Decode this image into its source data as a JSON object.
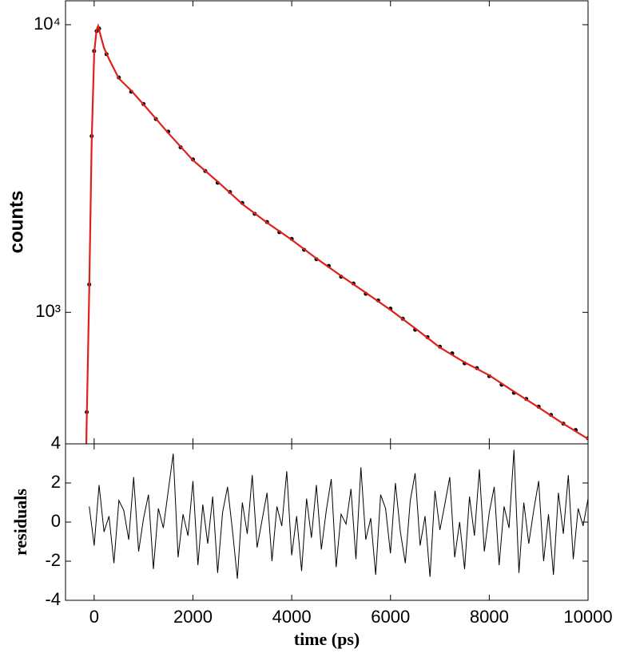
{
  "chart_data": [
    {
      "type": "scatter",
      "ylabel": "counts",
      "yscale": "log",
      "xlim": [
        -580,
        10000
      ],
      "ylim": [
        349,
        12110
      ],
      "yticks": [
        {
          "value": 1000,
          "label": "10³"
        },
        {
          "value": 10000,
          "label": "10⁴"
        }
      ],
      "series": [
        {
          "color": "#000000",
          "x": [
            -150,
            -100,
            -50,
            0,
            50,
            100,
            250,
            500,
            750,
            1000,
            1250,
            1500,
            1750,
            2000,
            2250,
            2500,
            2750,
            3000,
            3250,
            3500,
            3750,
            4000,
            4250,
            4500,
            4750,
            5000,
            5250,
            5500,
            5750,
            6000,
            6250,
            6500,
            6750,
            7000,
            7250,
            7500,
            7750,
            8000,
            8250,
            8500,
            8750,
            9000,
            9250,
            9500,
            9750,
            10000
          ],
          "values": [
            450,
            1250,
            4100,
            8100,
            9500,
            9700,
            7900,
            6550,
            5850,
            5300,
            4700,
            4250,
            3750,
            3400,
            3100,
            2820,
            2620,
            2400,
            2200,
            2060,
            1900,
            1800,
            1650,
            1530,
            1450,
            1330,
            1260,
            1160,
            1100,
            1030,
            950,
            870,
            820,
            760,
            720,
            665,
            640,
            600,
            560,
            525,
            500,
            470,
            440,
            410,
            390,
            365
          ]
        },
        {
          "color": "#e0201b",
          "x": [
            -160,
            -100,
            -50,
            0,
            50,
            80,
            120,
            200,
            300,
            500,
            750,
            1000,
            1500,
            2000,
            2500,
            3000,
            3500,
            4000,
            4500,
            5000,
            5500,
            6000,
            6500,
            7000,
            7500,
            8000,
            8500,
            9000,
            9500,
            10000
          ],
          "values": [
            349,
            1200,
            4000,
            8000,
            9600,
            9900,
            9300,
            8300,
            7600,
            6500,
            5900,
            5280,
            4200,
            3380,
            2850,
            2380,
            2050,
            1787,
            1540,
            1340,
            1170,
            1020,
            880,
            755,
            670,
            604,
            530,
            467,
            410,
            363
          ]
        }
      ]
    },
    {
      "type": "line",
      "xlabel": "time (ps)",
      "ylabel": "residuals",
      "color": "#000000",
      "xlim": [
        -580,
        10000
      ],
      "xticks": [
        0,
        2000,
        4000,
        6000,
        8000,
        10000
      ],
      "ylim": [
        -4,
        4
      ],
      "yticks": [
        -4,
        -2,
        0,
        2,
        4
      ],
      "x": [
        -100,
        0,
        100,
        200,
        300,
        400,
        500,
        600,
        700,
        800,
        900,
        1000,
        1100,
        1200,
        1300,
        1400,
        1500,
        1600,
        1700,
        1800,
        1900,
        2000,
        2100,
        2200,
        2300,
        2400,
        2500,
        2600,
        2700,
        2800,
        2900,
        3000,
        3100,
        3200,
        3300,
        3400,
        3500,
        3600,
        3700,
        3800,
        3900,
        4000,
        4100,
        4200,
        4300,
        4400,
        4500,
        4600,
        4700,
        4800,
        4900,
        5000,
        5100,
        5200,
        5300,
        5400,
        5500,
        5600,
        5700,
        5800,
        5900,
        6000,
        6100,
        6200,
        6300,
        6400,
        6500,
        6600,
        6700,
        6800,
        6900,
        7000,
        7100,
        7200,
        7300,
        7400,
        7500,
        7600,
        7700,
        7800,
        7900,
        8000,
        8100,
        8200,
        8300,
        8400,
        8500,
        8600,
        8700,
        8800,
        8900,
        9000,
        9100,
        9200,
        9300,
        9400,
        9500,
        9600,
        9700,
        9800,
        9900,
        10000
      ],
      "values": [
        0.8,
        -1.2,
        1.9,
        -0.5,
        0.3,
        -2.1,
        1.1,
        0.6,
        -0.9,
        2.3,
        -1.5,
        0.2,
        1.4,
        -2.4,
        0.7,
        -0.3,
        1.6,
        3.5,
        -1.8,
        0.4,
        -0.7,
        2.1,
        -2.2,
        0.9,
        -1.1,
        1.3,
        -2.6,
        0.5,
        1.8,
        -0.4,
        -2.9,
        1.0,
        -0.6,
        2.4,
        -1.3,
        0.1,
        1.5,
        -2.0,
        0.8,
        -0.2,
        2.6,
        -1.7,
        0.3,
        -2.5,
        1.2,
        -0.8,
        1.9,
        -1.4,
        0.6,
        2.2,
        -2.3,
        0.4,
        -0.1,
        1.7,
        -1.9,
        2.8,
        -0.9,
        0.2,
        -2.7,
        1.4,
        0.7,
        -1.6,
        2.0,
        -0.5,
        -2.1,
        1.1,
        2.5,
        -1.2,
        0.3,
        -2.8,
        1.6,
        -0.4,
        0.9,
        2.3,
        -1.8,
        0.0,
        -2.4,
        1.3,
        -0.7,
        2.7,
        -1.5,
        0.5,
        1.8,
        -2.2,
        0.8,
        -0.3,
        3.7,
        -2.6,
        1.0,
        -1.1,
        0.6,
        2.1,
        -2.0,
        0.4,
        -2.7,
        1.5,
        -0.6,
        2.4,
        -1.9,
        0.7,
        -0.2,
        1.2
      ]
    }
  ]
}
